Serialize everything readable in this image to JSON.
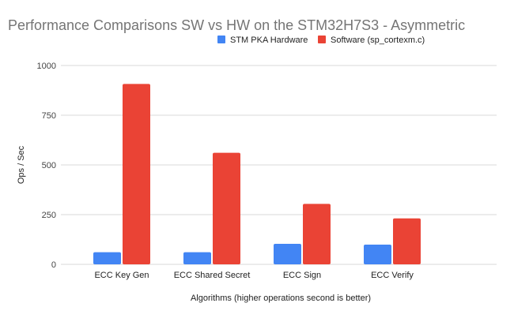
{
  "chart_data": {
    "type": "bar",
    "title": "Performance Comparisons SW vs HW on the STM32H7S3 - Asymmetric",
    "xlabel": "Algorithms (higher operations second is better)",
    "ylabel": "Ops / Sec",
    "ylim": [
      0,
      1000
    ],
    "yticks": [
      "0",
      "250",
      "500",
      "750",
      "1000"
    ],
    "grid": true,
    "legend_position": "top",
    "categories": [
      "ECC Key Gen",
      "ECC Shared Secret",
      "ECC Sign",
      "ECC Verify"
    ],
    "series": [
      {
        "name": "STM PKA Hardware",
        "color": "#4285f4",
        "values": [
          61,
          61,
          103,
          99
        ]
      },
      {
        "name": "Software (sp_cortexm.c)",
        "color": "#ea4335",
        "values": [
          907,
          561,
          304,
          231
        ]
      }
    ]
  }
}
